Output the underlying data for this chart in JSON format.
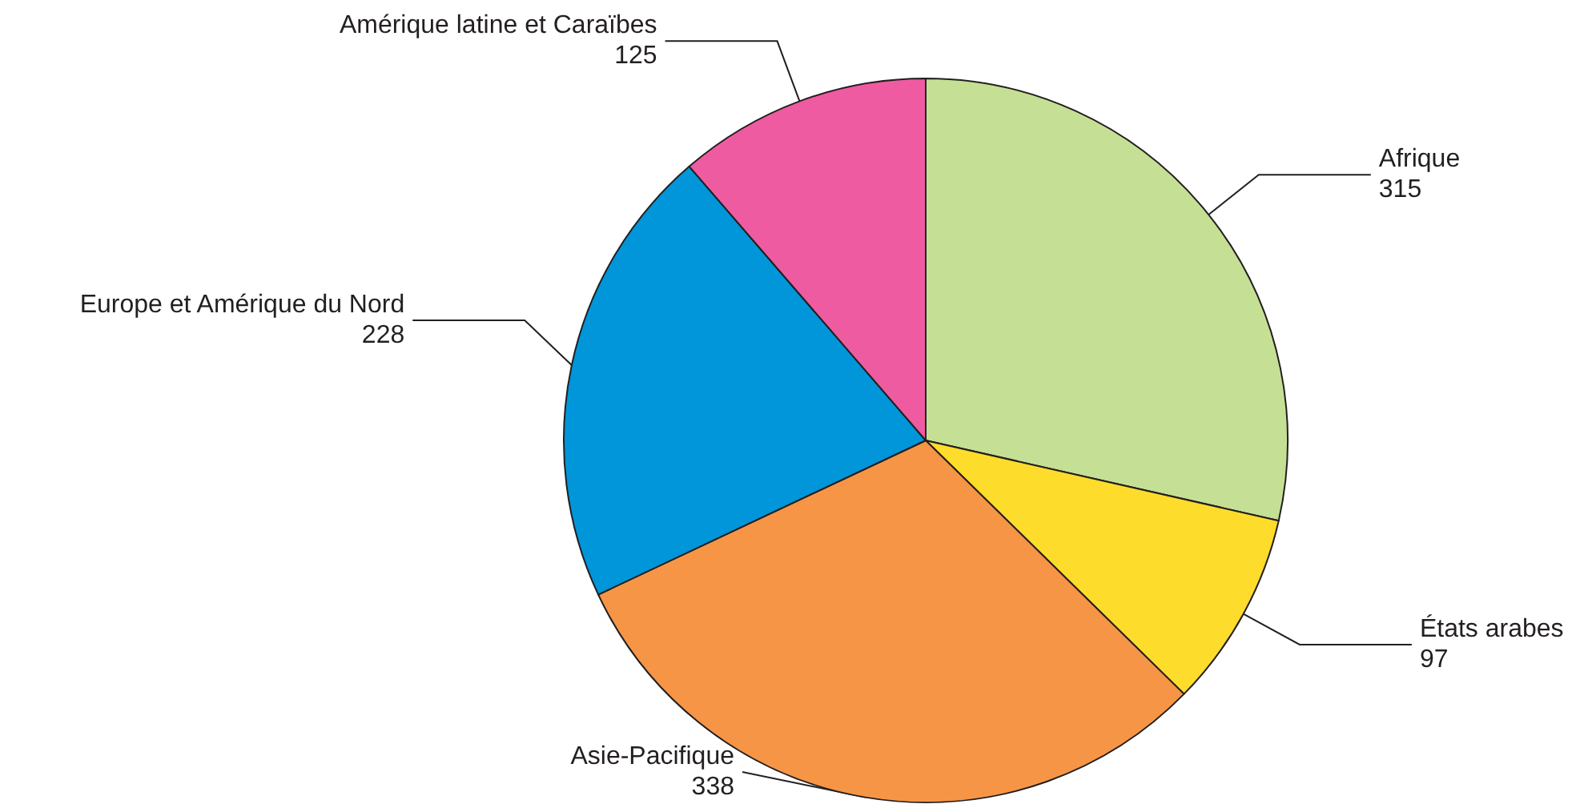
{
  "chart_data": {
    "type": "pie",
    "categories": [
      "Afrique",
      "États arabes",
      "Asie-Pacifique",
      "Europe et Amérique du Nord",
      "Amérique latine et Caraïbes"
    ],
    "values": [
      315,
      97,
      338,
      228,
      125
    ],
    "colors": [
      "#c5e094",
      "#fddc2c",
      "#f79546",
      "#0096d9",
      "#ef5ba1"
    ],
    "data_labels": true
  }
}
